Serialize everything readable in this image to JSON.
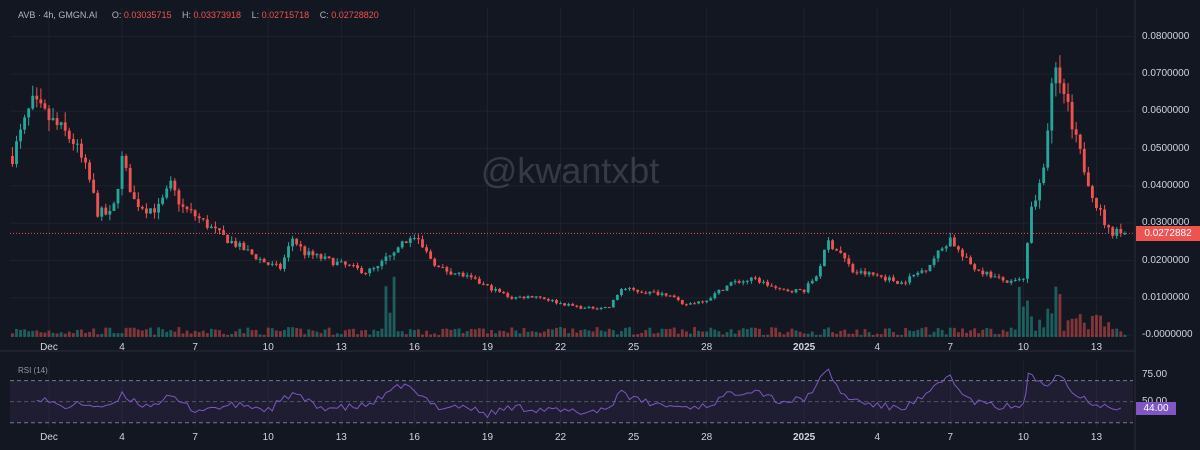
{
  "header": {
    "symbol": "AVB · 4h, GMGN.AI",
    "open_key": "O:",
    "open": "0.03035715",
    "high_key": "H:",
    "high": "0.03373918",
    "low_key": "L:",
    "low": "0.02715718",
    "close_key": "C:",
    "close": "0.02728820"
  },
  "watermark": "@kwantxbt",
  "rsi_title": "RSI (14)",
  "colors": {
    "up": "#26a69a",
    "down": "#ef5350",
    "rsi": "#7e57c2",
    "background": "#131722"
  },
  "chart_data": [
    {
      "type": "candlestick",
      "y_tick_labels": [
        "0.0800000",
        "0.0700000",
        "0.0600000",
        "0.0500000",
        "0.0400000",
        "0.0300000",
        "0.0200000",
        "0.0100000",
        "-0.0000000"
      ],
      "y_ticks": [
        0.08,
        0.07,
        0.06,
        0.05,
        0.04,
        0.03,
        0.02,
        0.01,
        0
      ],
      "ylim": [
        -0.0005,
        0.085
      ],
      "last_price": 0.0272882,
      "last_price_label": "0.0272882",
      "x_tick_labels": [
        "Dec",
        "4",
        "7",
        "10",
        "13",
        "16",
        "19",
        "22",
        "25",
        "28",
        "2025",
        "4",
        "7",
        "10",
        "13"
      ],
      "x_tick_days": [
        1,
        4,
        7,
        10,
        13,
        16,
        19,
        22,
        25,
        28,
        32,
        35,
        38,
        41,
        44
      ],
      "x_range_days": [
        -0.6,
        45.5
      ],
      "bar_interval_hours": 4,
      "price_path": [
        [
          -0.5,
          0.048
        ],
        [
          0.3,
          0.062
        ],
        [
          1,
          0.058
        ],
        [
          2,
          0.052
        ],
        [
          2.6,
          0.043
        ],
        [
          3,
          0.033
        ],
        [
          3.6,
          0.032
        ],
        [
          4,
          0.047
        ],
        [
          4.5,
          0.036
        ],
        [
          5,
          0.034
        ],
        [
          5.5,
          0.034
        ],
        [
          6,
          0.04
        ],
        [
          6.5,
          0.034
        ],
        [
          7,
          0.032
        ],
        [
          8,
          0.027
        ],
        [
          9,
          0.023
        ],
        [
          10,
          0.019
        ],
        [
          10.5,
          0.018
        ],
        [
          11,
          0.026
        ],
        [
          11.5,
          0.022
        ],
        [
          12,
          0.021
        ],
        [
          13,
          0.019
        ],
        [
          14,
          0.017
        ],
        [
          14.5,
          0.018
        ],
        [
          15,
          0.022
        ],
        [
          15.5,
          0.025
        ],
        [
          16,
          0.026
        ],
        [
          16.5,
          0.022
        ],
        [
          17,
          0.018
        ],
        [
          18,
          0.016
        ],
        [
          19,
          0.013
        ],
        [
          20,
          0.01
        ],
        [
          21,
          0.0105
        ],
        [
          22,
          0.0085
        ],
        [
          23,
          0.0072
        ],
        [
          24,
          0.0075
        ],
        [
          24.5,
          0.0125
        ],
        [
          25.5,
          0.0115
        ],
        [
          26.5,
          0.011
        ],
        [
          27,
          0.008
        ],
        [
          28,
          0.0095
        ],
        [
          29,
          0.014
        ],
        [
          30,
          0.015
        ],
        [
          31,
          0.012
        ],
        [
          32,
          0.012
        ],
        [
          32.5,
          0.016
        ],
        [
          33,
          0.025
        ],
        [
          33.5,
          0.022
        ],
        [
          34,
          0.017
        ],
        [
          35,
          0.016
        ],
        [
          36,
          0.014
        ],
        [
          37,
          0.018
        ],
        [
          38,
          0.026
        ],
        [
          38.5,
          0.021
        ],
        [
          39,
          0.018
        ],
        [
          40,
          0.015
        ],
        [
          40.5,
          0.014
        ],
        [
          41,
          0.015
        ],
        [
          41.3,
          0.033
        ],
        [
          41.8,
          0.045
        ],
        [
          42.3,
          0.073
        ],
        [
          42.7,
          0.064
        ],
        [
          43,
          0.055
        ],
        [
          43.6,
          0.043
        ],
        [
          44,
          0.035
        ],
        [
          44.5,
          0.028
        ],
        [
          45,
          0.0273
        ]
      ],
      "rsi": {
        "y_tick_labels": [
          "75.00",
          "50.00"
        ],
        "y_ticks": [
          75,
          50
        ],
        "ylim": [
          25,
          82
        ],
        "bands": [
          70,
          30
        ],
        "last_value": 44.0,
        "last_value_label": "44.00",
        "path": [
          [
            0.5,
            55
          ],
          [
            1.5,
            45
          ],
          [
            2.5,
            48
          ],
          [
            3.5,
            44
          ],
          [
            4,
            56
          ],
          [
            5,
            46
          ],
          [
            6,
            54
          ],
          [
            7,
            42
          ],
          [
            8,
            45
          ],
          [
            9,
            47
          ],
          [
            10,
            42
          ],
          [
            11,
            58
          ],
          [
            12,
            45
          ],
          [
            13,
            44
          ],
          [
            14,
            46
          ],
          [
            15,
            58
          ],
          [
            15.6,
            68
          ],
          [
            16,
            58
          ],
          [
            17,
            45
          ],
          [
            18,
            46
          ],
          [
            19,
            38
          ],
          [
            20,
            45
          ],
          [
            21,
            43
          ],
          [
            22,
            41
          ],
          [
            23,
            40
          ],
          [
            24,
            44
          ],
          [
            24.5,
            62
          ],
          [
            25,
            52
          ],
          [
            26,
            47
          ],
          [
            27,
            45
          ],
          [
            28,
            46
          ],
          [
            29,
            58
          ],
          [
            30,
            62
          ],
          [
            31,
            50
          ],
          [
            32,
            52
          ],
          [
            33,
            80
          ],
          [
            33.5,
            58
          ],
          [
            34,
            52
          ],
          [
            35,
            46
          ],
          [
            36,
            44
          ],
          [
            37,
            55
          ],
          [
            38,
            76
          ],
          [
            38.5,
            55
          ],
          [
            39,
            50
          ],
          [
            40,
            45
          ],
          [
            41,
            46
          ],
          [
            41.2,
            74
          ],
          [
            42,
            68
          ],
          [
            42.5,
            78
          ],
          [
            43,
            58
          ],
          [
            44,
            48
          ],
          [
            45,
            44
          ]
        ]
      },
      "volume_spikes_days": [
        15,
        41,
        42.2
      ]
    }
  ]
}
